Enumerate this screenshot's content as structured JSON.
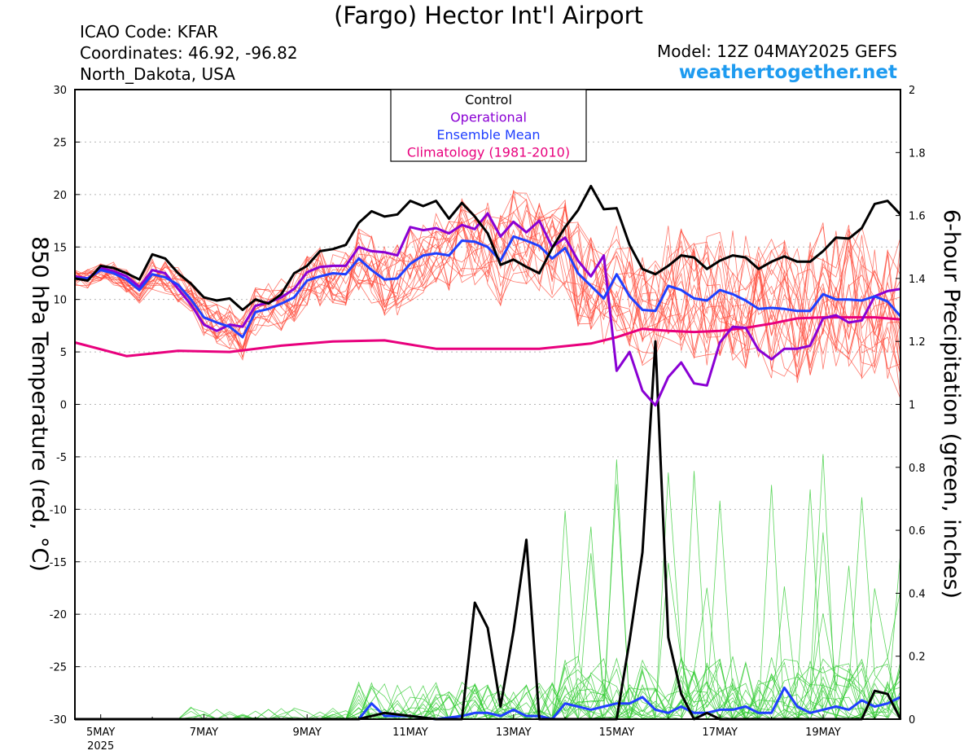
{
  "header": {
    "title": "(Fargo) Hector Int'l Airport",
    "icao": "ICAO Code: KFAR",
    "coords": "Coordinates: 46.92, -96.82",
    "region": "North_Dakota, USA",
    "model": "Model: 12Z 04MAY2025 GEFS",
    "site": "weathertogether.net"
  },
  "colors": {
    "control": "#000000",
    "operational": "#8a00d4",
    "mean": "#1f3fff",
    "climatology": "#e8007d",
    "members": "#ff4a3a",
    "precip_members": "#33cc33",
    "brand": "#1e9bf0"
  },
  "chart_data": {
    "type": "line",
    "ylabel": "850 hPa Temperature (red, °C)",
    "ylabel_right": "6-hour Precipitation (green, inches)",
    "ylim": [
      -30,
      30
    ],
    "ylim_right": [
      0,
      2
    ],
    "yticks": [
      "30",
      "25",
      "20",
      "15",
      "10",
      "5",
      "0",
      "-5",
      "-10",
      "-15",
      "-20",
      "-25",
      "-30"
    ],
    "yticks_right": [
      "2",
      "1.8",
      "1.6",
      "1.4",
      "1.2",
      "1",
      "0.8",
      "0.6",
      "0.4",
      "0.2",
      "0"
    ],
    "xticks": [
      "5MAY",
      "7MAY",
      "9MAY",
      "11MAY",
      "13MAY",
      "15MAY",
      "17MAY",
      "19MAY"
    ],
    "xtick_year": "2025",
    "xlim_days": [
      4.5,
      20.5
    ],
    "grid": true,
    "legend": {
      "position": "top-center",
      "entries": [
        "Control",
        "Operational",
        "Ensemble Mean",
        "Climatology (1981-2010)"
      ]
    },
    "series": [
      {
        "name": "Control",
        "axis": "left",
        "x": [
          4.5,
          4.75,
          5.0,
          5.25,
          5.5,
          5.75,
          6.0,
          6.25,
          6.5,
          6.75,
          7.0,
          7.25,
          7.5,
          7.75,
          8.0,
          8.25,
          8.5,
          8.75,
          9.0,
          9.25,
          9.5,
          9.75,
          10.0,
          10.25,
          10.5,
          10.75,
          11.0,
          11.25,
          11.5,
          11.75,
          12.0,
          12.25,
          12.5,
          12.75,
          13.0,
          13.25,
          13.5,
          13.75,
          14.0,
          14.25,
          14.5,
          14.75,
          15.0,
          15.25,
          15.5,
          15.75,
          16.0,
          16.25,
          16.5,
          16.75,
          17.0,
          17.25,
          17.5,
          17.75,
          18.0,
          18.25,
          18.5,
          18.75,
          19.0,
          19.25,
          19.5,
          19.75,
          20.0,
          20.25,
          20.5
        ],
        "y": [
          12.0,
          11.8,
          13.2,
          13.0,
          12.5,
          11.9,
          14.3,
          13.9,
          12.5,
          11.5,
          10.2,
          9.9,
          10.1,
          9.0,
          10.0,
          9.6,
          10.5,
          12.5,
          13.2,
          14.6,
          14.8,
          15.2,
          17.3,
          18.4,
          17.9,
          18.1,
          19.4,
          18.9,
          19.4,
          17.7,
          19.2,
          17.9,
          16.3,
          13.3,
          13.8,
          13.1,
          12.5,
          14.9,
          16.9,
          18.5,
          20.8,
          18.6,
          18.7,
          15.2,
          12.9,
          12.4,
          13.2,
          14.2,
          14.0,
          12.9,
          13.7,
          14.2,
          14.0,
          12.9,
          13.6,
          14.1,
          13.6,
          13.6,
          14.6,
          15.9,
          15.8,
          16.8,
          19.1,
          19.4,
          18.1
        ]
      },
      {
        "name": "Operational",
        "axis": "left",
        "x": [
          4.5,
          4.75,
          5.0,
          5.25,
          5.5,
          5.75,
          6.0,
          6.25,
          6.5,
          6.75,
          7.0,
          7.25,
          7.5,
          7.75,
          8.0,
          8.25,
          8.5,
          8.75,
          9.0,
          9.25,
          9.5,
          9.75,
          10.0,
          10.25,
          10.5,
          10.75,
          11.0,
          11.25,
          11.5,
          11.75,
          12.0,
          12.25,
          12.5,
          12.75,
          13.0,
          13.25,
          13.5,
          13.75,
          14.0,
          14.25,
          14.5,
          14.75,
          15.0,
          15.25,
          15.5,
          15.75,
          16.0,
          16.25,
          16.5,
          16.75,
          17.0,
          17.25,
          17.5,
          17.75,
          18.0,
          18.25,
          18.5,
          18.75,
          19.0,
          19.25,
          19.5,
          19.75,
          20.0,
          20.25,
          20.5
        ],
        "y": [
          12.2,
          12.0,
          13.0,
          12.7,
          12.2,
          11.2,
          12.8,
          12.5,
          11.0,
          9.5,
          7.6,
          7.0,
          7.6,
          7.4,
          9.4,
          9.7,
          10.2,
          11.0,
          12.6,
          13.1,
          13.2,
          13.2,
          15.0,
          14.6,
          14.5,
          14.2,
          16.9,
          16.6,
          16.8,
          16.3,
          17.1,
          16.7,
          18.2,
          16.0,
          17.4,
          16.4,
          17.5,
          15.0,
          15.9,
          13.7,
          12.2,
          14.2,
          3.2,
          5.0,
          1.3,
          -0.1,
          2.6,
          4.0,
          2.0,
          1.8,
          5.9,
          7.4,
          7.3,
          5.2,
          4.3,
          5.3,
          5.3,
          5.6,
          8.2,
          8.5,
          7.8,
          8.0,
          10.3,
          10.8,
          11.0
        ]
      },
      {
        "name": "Ensemble Mean",
        "axis": "left",
        "x": [
          4.5,
          4.75,
          5.0,
          5.25,
          5.5,
          5.75,
          6.0,
          6.25,
          6.5,
          6.75,
          7.0,
          7.25,
          7.5,
          7.75,
          8.0,
          8.25,
          8.5,
          8.75,
          9.0,
          9.25,
          9.5,
          9.75,
          10.0,
          10.25,
          10.5,
          10.75,
          11.0,
          11.25,
          11.5,
          11.75,
          12.0,
          12.25,
          12.5,
          12.75,
          13.0,
          13.25,
          13.5,
          13.75,
          14.0,
          14.25,
          14.5,
          14.75,
          15.0,
          15.25,
          15.5,
          15.75,
          16.0,
          16.25,
          16.5,
          16.75,
          17.0,
          17.25,
          17.5,
          17.75,
          18.0,
          18.25,
          18.5,
          18.75,
          19.0,
          19.25,
          19.5,
          19.75,
          20.0,
          20.25,
          20.5
        ],
        "y": [
          12.0,
          12.0,
          12.8,
          12.5,
          11.9,
          10.9,
          12.4,
          12.1,
          11.4,
          10.0,
          8.3,
          7.8,
          7.4,
          6.4,
          8.8,
          9.1,
          9.6,
          10.2,
          11.8,
          12.2,
          12.5,
          12.4,
          13.9,
          12.8,
          11.9,
          12.0,
          13.4,
          14.2,
          14.4,
          14.2,
          15.6,
          15.5,
          15.0,
          13.7,
          16.0,
          15.6,
          15.1,
          13.9,
          14.9,
          12.5,
          11.3,
          10.1,
          12.4,
          10.3,
          9.0,
          8.9,
          11.3,
          10.9,
          10.1,
          9.9,
          10.9,
          10.5,
          9.9,
          9.1,
          9.2,
          9.1,
          8.9,
          8.9,
          10.5,
          10.0,
          10.0,
          9.9,
          10.3,
          9.8,
          8.4
        ]
      },
      {
        "name": "Climatology (1981-2010)",
        "axis": "left",
        "x": [
          4.5,
          5.5,
          6.5,
          7.5,
          8.5,
          9.5,
          10.5,
          11.5,
          12.5,
          13.5,
          14.5,
          15.0,
          15.5,
          16.0,
          16.5,
          17.0,
          17.5,
          18.0,
          18.5,
          19.0,
          19.5,
          20.0,
          20.5
        ],
        "y": [
          5.9,
          4.6,
          5.1,
          5.0,
          5.6,
          6.0,
          6.1,
          5.3,
          5.3,
          5.3,
          5.8,
          6.4,
          7.2,
          7.0,
          6.9,
          7.0,
          7.3,
          7.7,
          8.2,
          8.3,
          8.3,
          8.3,
          8.1
        ]
      },
      {
        "name": "Control",
        "axis": "right",
        "x": [
          4.5,
          9.5,
          10.0,
          10.5,
          11.0,
          11.5,
          12.0,
          12.25,
          12.5,
          12.75,
          13.0,
          13.25,
          13.5,
          13.75,
          14.0,
          14.5,
          14.75,
          15.0,
          15.25,
          15.5,
          15.75,
          16.0,
          16.25,
          16.5,
          16.75,
          17.0,
          17.5,
          18.0,
          18.5,
          19.0,
          19.5,
          19.75,
          20.0,
          20.25,
          20.5
        ],
        "y": [
          0,
          0,
          0,
          0.02,
          0.01,
          0,
          0,
          0.37,
          0.29,
          0.04,
          0.28,
          0.57,
          0,
          0,
          0,
          0,
          0,
          0,
          0.25,
          0.53,
          1.2,
          0.26,
          0.08,
          0,
          0.02,
          0,
          0,
          0,
          0,
          0,
          0,
          0,
          0.09,
          0.08,
          0
        ]
      },
      {
        "name": "Ensemble Mean",
        "axis": "right",
        "x": [
          4.5,
          9.5,
          10.0,
          10.25,
          10.5,
          11.0,
          11.5,
          12.0,
          12.25,
          12.5,
          12.75,
          13.0,
          13.25,
          13.5,
          13.75,
          14.0,
          14.25,
          14.5,
          14.75,
          15.0,
          15.25,
          15.5,
          15.75,
          16.0,
          16.25,
          16.5,
          16.75,
          17.0,
          17.25,
          17.5,
          17.75,
          18.0,
          18.25,
          18.5,
          18.75,
          19.0,
          19.25,
          19.5,
          19.75,
          20.0,
          20.25,
          20.5
        ],
        "y": [
          0,
          0,
          0,
          0.05,
          0.01,
          0.01,
          0,
          0.01,
          0.02,
          0.02,
          0.01,
          0.03,
          0.01,
          0.01,
          0,
          0.05,
          0.04,
          0.03,
          0.04,
          0.05,
          0.05,
          0.07,
          0.03,
          0.02,
          0.04,
          0.02,
          0.02,
          0.03,
          0.03,
          0.04,
          0.02,
          0.02,
          0.1,
          0.04,
          0.02,
          0.03,
          0.04,
          0.03,
          0.06,
          0.04,
          0.05,
          0.07
        ]
      }
    ]
  }
}
